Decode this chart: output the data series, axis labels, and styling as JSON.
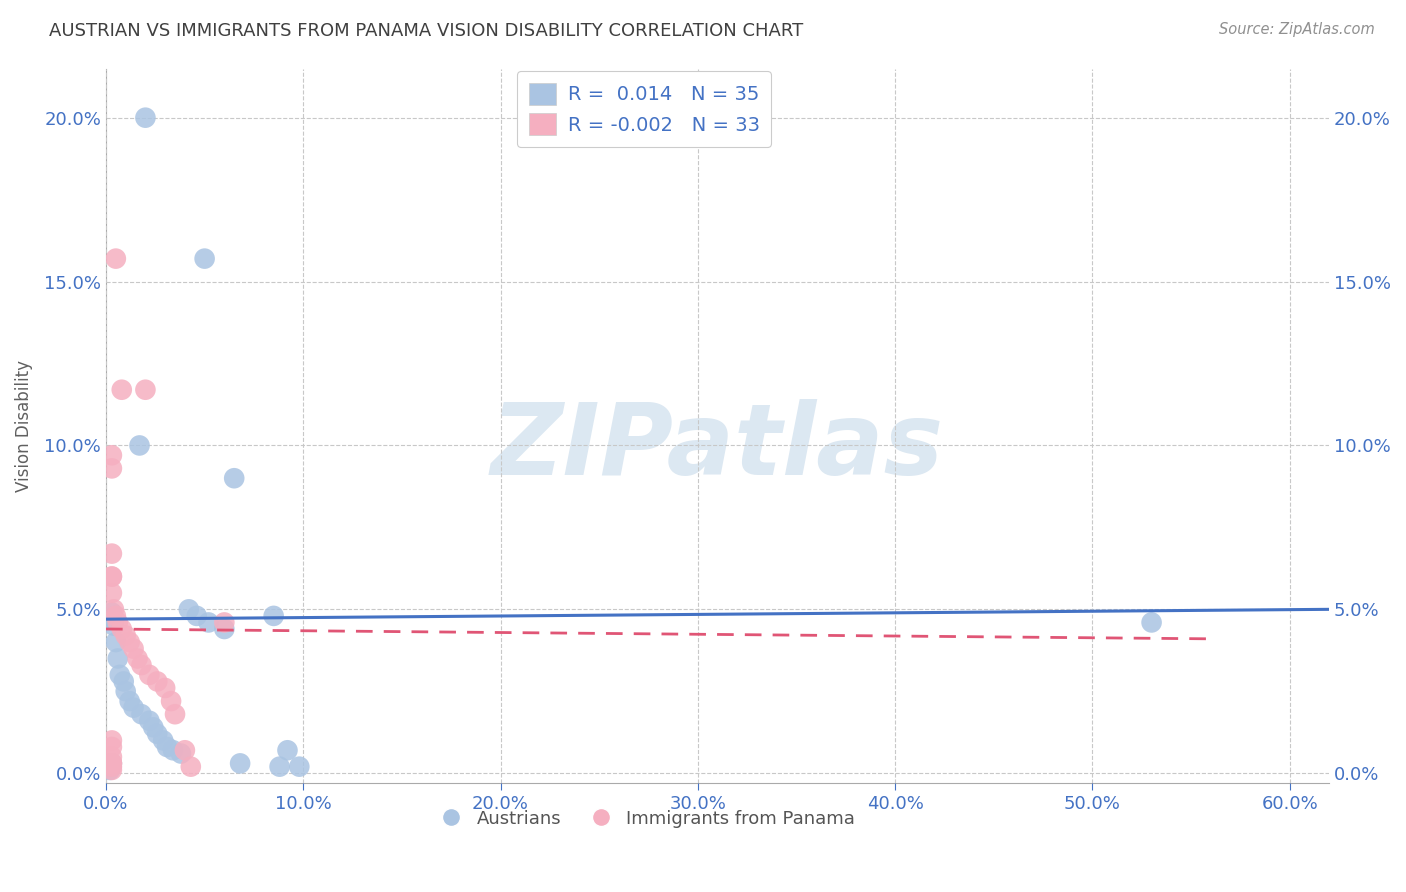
{
  "title": "AUSTRIAN VS IMMIGRANTS FROM PANAMA VISION DISABILITY CORRELATION CHART",
  "source": "Source: ZipAtlas.com",
  "ylabel": "Vision Disability",
  "xlim": [
    0.0,
    0.62
  ],
  "ylim": [
    -0.003,
    0.215
  ],
  "xtick_vals": [
    0.0,
    0.1,
    0.2,
    0.3,
    0.4,
    0.5,
    0.6
  ],
  "ytick_vals": [
    0.0,
    0.05,
    0.1,
    0.15,
    0.2
  ],
  "legend_r_blue": " 0.014",
  "legend_n_blue": "35",
  "legend_r_pink": "-0.002",
  "legend_n_pink": "33",
  "blue_scatter_color": "#aac4e2",
  "pink_scatter_color": "#f5afc0",
  "line_blue_color": "#4472c4",
  "line_pink_color": "#e05575",
  "grid_color": "#c8c8c8",
  "watermark_text": "ZIPatlas",
  "watermark_color": "#dce8f2",
  "title_color": "#404040",
  "source_color": "#909090",
  "tick_color": "#4472c4",
  "ylabel_color": "#606060",
  "blue_line_start_y": 0.047,
  "blue_line_end_y": 0.05,
  "pink_line_start_y": 0.044,
  "pink_line_end_y": 0.041,
  "blue_x": [
    0.02,
    0.05,
    0.017,
    0.065,
    0.003,
    0.003,
    0.004,
    0.005,
    0.006,
    0.007,
    0.009,
    0.01,
    0.012,
    0.014,
    0.018,
    0.022,
    0.024,
    0.026,
    0.029,
    0.031,
    0.034,
    0.038,
    0.042,
    0.046,
    0.052,
    0.06,
    0.068,
    0.085,
    0.092,
    0.098,
    0.53,
    0.088,
    0.003,
    0.002,
    0.002
  ],
  "blue_y": [
    0.2,
    0.157,
    0.1,
    0.09,
    0.049,
    0.047,
    0.045,
    0.04,
    0.035,
    0.03,
    0.028,
    0.025,
    0.022,
    0.02,
    0.018,
    0.016,
    0.014,
    0.012,
    0.01,
    0.008,
    0.007,
    0.006,
    0.05,
    0.048,
    0.046,
    0.044,
    0.003,
    0.048,
    0.007,
    0.002,
    0.046,
    0.002,
    0.003,
    0.002,
    0.001
  ],
  "pink_x": [
    0.005,
    0.008,
    0.02,
    0.003,
    0.003,
    0.003,
    0.003,
    0.003,
    0.004,
    0.005,
    0.006,
    0.008,
    0.01,
    0.012,
    0.014,
    0.016,
    0.018,
    0.022,
    0.026,
    0.03,
    0.033,
    0.035,
    0.04,
    0.043,
    0.06,
    0.003,
    0.003,
    0.003,
    0.003,
    0.003,
    0.003,
    0.003,
    0.003
  ],
  "pink_y": [
    0.157,
    0.117,
    0.117,
    0.097,
    0.093,
    0.067,
    0.06,
    0.055,
    0.05,
    0.048,
    0.046,
    0.044,
    0.042,
    0.04,
    0.038,
    0.035,
    0.033,
    0.03,
    0.028,
    0.026,
    0.022,
    0.018,
    0.007,
    0.002,
    0.046,
    0.01,
    0.008,
    0.005,
    0.003,
    0.002,
    0.001,
    0.06,
    0.003
  ]
}
